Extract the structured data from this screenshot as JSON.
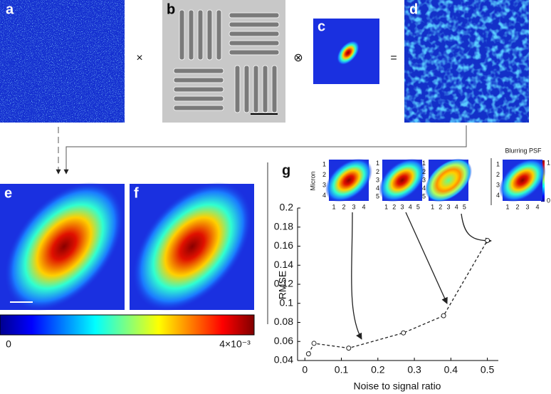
{
  "panels": {
    "a": "a",
    "b": "b",
    "c": "c",
    "d": "d",
    "e": "e",
    "f": "f",
    "g": "g"
  },
  "operators": [
    "×",
    "⊗",
    "="
  ],
  "colorbar": {
    "ticks": [
      0,
      {
        "value": 0.004,
        "label": "4×10⁻³"
      }
    ]
  },
  "insets": {
    "ylabel": "Micron",
    "title": "Blurring PSF",
    "colorbar_ticks": [
      0,
      1
    ],
    "ticks": [
      [
        1,
        2,
        3,
        4
      ],
      [
        1,
        2,
        3,
        4,
        5
      ],
      [
        1,
        2,
        3,
        4,
        5
      ],
      [
        1,
        2,
        3,
        4
      ]
    ]
  },
  "chart_data": {
    "type": "line",
    "xlabel": "Noise to signal ratio",
    "ylabel": "RMSE",
    "xlim": [
      -0.02,
      0.53
    ],
    "ylim": [
      0.04,
      0.2
    ],
    "xticks": [
      0,
      0.1,
      0.2,
      0.3,
      0.4,
      0.5
    ],
    "yticks": [
      0.04,
      0.06,
      0.08,
      0.1,
      0.12,
      0.14,
      0.16,
      0.18,
      0.2
    ],
    "line_style": "dashed",
    "marker": "circle",
    "series": [
      {
        "color": "#222222",
        "x": [
          0.01,
          0.025,
          0.12,
          0.27,
          0.38,
          0.5
        ],
        "values": [
          0.047,
          0.058,
          0.053,
          0.069,
          0.087,
          0.166
        ]
      }
    ]
  }
}
